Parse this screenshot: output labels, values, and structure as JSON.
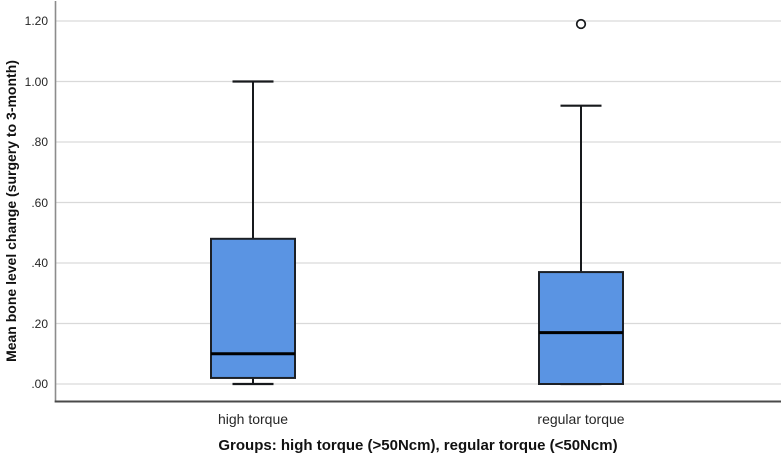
{
  "figure": {
    "background": "#ffffff"
  },
  "chart_data": {
    "type": "boxplot",
    "title": "Groups: high torque (>50Ncm), regular torque (<50Ncm)",
    "ylabel": "Mean bone level change (surgery to 3-month)",
    "xlabel": "",
    "categories": [
      "high torque",
      "regular torque"
    ],
    "y_axis": {
      "min": 0.0,
      "max": 1.2,
      "tick_step": 0.2,
      "ticks": [
        {
          "label": "1.20",
          "value": 1.2
        },
        {
          "label": "1.00",
          "value": 1.0
        },
        {
          "label": ".80",
          "value": 0.8
        },
        {
          "label": ".60",
          "value": 0.6
        },
        {
          "label": ".40",
          "value": 0.4
        },
        {
          "label": ".20",
          "value": 0.2
        },
        {
          "label": ".00",
          "value": 0.0
        }
      ]
    },
    "series": [
      {
        "category": "high torque",
        "min": 0.0,
        "q1": 0.02,
        "median": 0.1,
        "q3": 0.48,
        "max": 1.0,
        "outliers": []
      },
      {
        "category": "regular torque",
        "min": 0.0,
        "q1": 0.0,
        "median": 0.17,
        "q3": 0.37,
        "max": 0.92,
        "outliers": [
          1.19
        ]
      }
    ],
    "grid": true,
    "legend_position": "none",
    "colors": {
      "box_fill": "#5a94e3",
      "box_border": "#1c2026",
      "median_line": "#000000",
      "whisker": "#17191c",
      "outlier_stroke": "#17191c",
      "outlier_fill": "#ffffff",
      "gridline": "#d9d9d9",
      "y_axis_line": "#8c8c8c",
      "x_axis_line": "#4a4a4a",
      "tick_text": "#262626",
      "title_text": "#111111"
    }
  }
}
